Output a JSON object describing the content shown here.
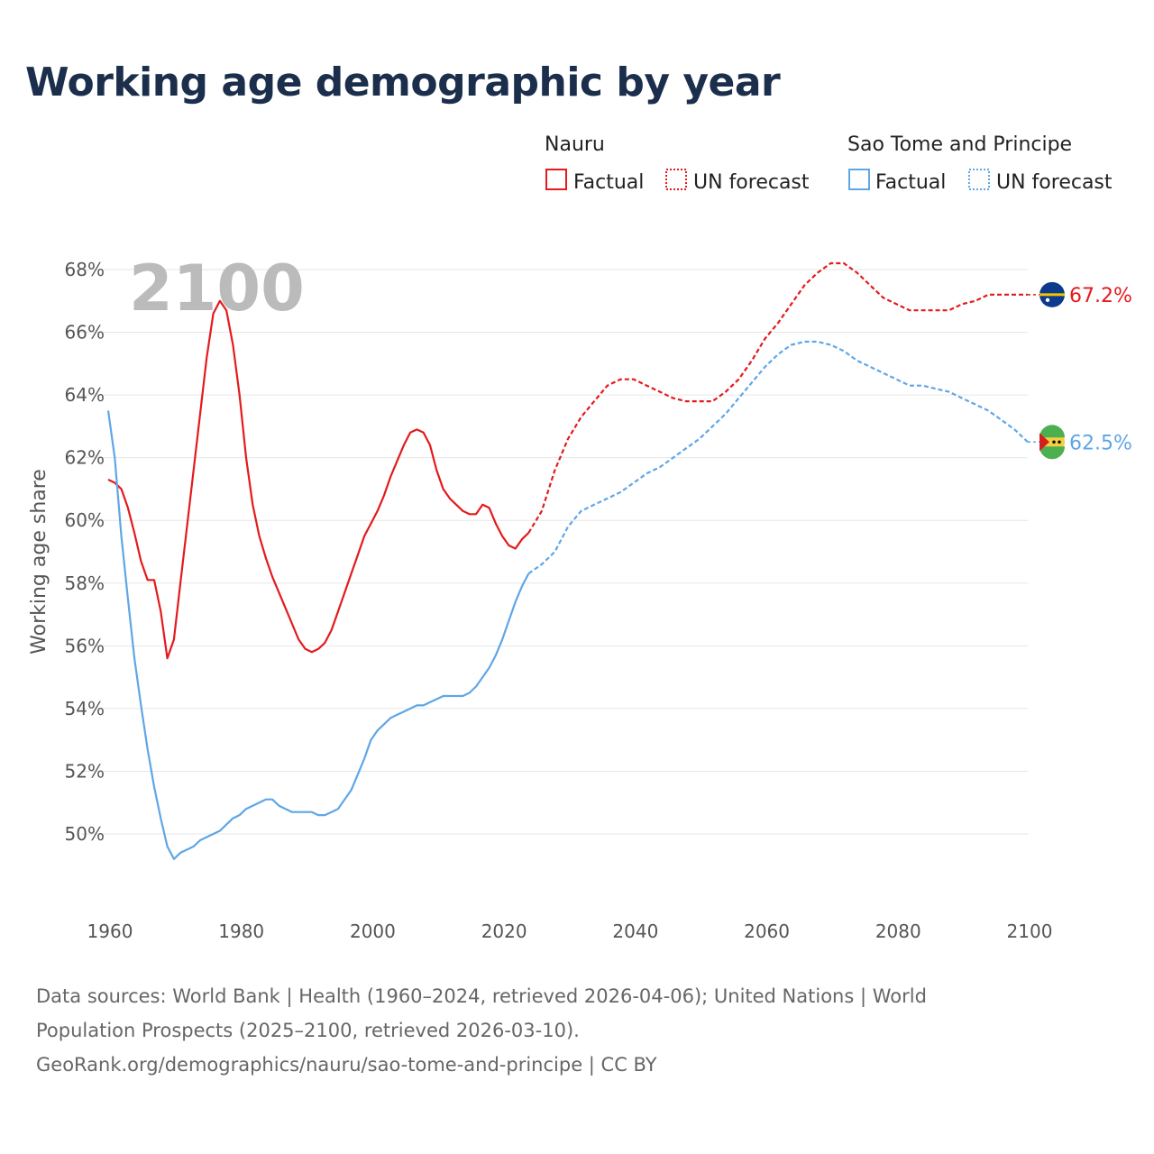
{
  "title": "Working age demographic by year",
  "chart_data": {
    "type": "line",
    "title": "Working age demographic by year",
    "xlabel": "",
    "ylabel": "Working age share",
    "xlim": [
      1960,
      2100
    ],
    "ylim": [
      48,
      69
    ],
    "x_ticks": [
      1960,
      1980,
      2000,
      2020,
      2040,
      2060,
      2080,
      2100
    ],
    "x_tick_labels": [
      "1960",
      "1980",
      "2000",
      "2020",
      "2040",
      "2060",
      "2080",
      "2100"
    ],
    "y_ticks": [
      50,
      52,
      54,
      56,
      58,
      60,
      62,
      64,
      66,
      68
    ],
    "y_tick_labels": [
      "50%",
      "52%",
      "54%",
      "56%",
      "58%",
      "60%",
      "62%",
      "64%",
      "66%",
      "68%"
    ],
    "year_label": "2100",
    "grid": true,
    "legend": {
      "placement": "top-right",
      "groups": [
        {
          "country": "Nauru",
          "factual": "Factual",
          "forecast": "UN forecast",
          "color": "#e41a1c"
        },
        {
          "country": "Sao Tome and Principe",
          "factual": "Factual",
          "forecast": "UN forecast",
          "color": "#5fa6e6"
        }
      ]
    },
    "series": [
      {
        "name": "Nauru",
        "color": "#e41a1c",
        "end_label": "67.2%",
        "factual": {
          "x": [
            1960,
            1961,
            1962,
            1963,
            1964,
            1965,
            1966,
            1967,
            1968,
            1969,
            1970,
            1971,
            1972,
            1973,
            1974,
            1975,
            1976,
            1977,
            1978,
            1979,
            1980,
            1981,
            1982,
            1983,
            1984,
            1985,
            1986,
            1987,
            1988,
            1989,
            1990,
            1991,
            1992,
            1993,
            1994,
            1995,
            1996,
            1997,
            1998,
            1999,
            2000,
            2001,
            2002,
            2003,
            2004,
            2005,
            2006,
            2007,
            2008,
            2009,
            2010,
            2011,
            2012,
            2013,
            2014,
            2015,
            2016,
            2017,
            2018,
            2019,
            2020,
            2021,
            2022,
            2023,
            2024
          ],
          "y": [
            61.3,
            61.2,
            61.0,
            60.4,
            59.6,
            58.7,
            58.1,
            58.1,
            57.1,
            55.6,
            56.2,
            58.0,
            59.8,
            61.6,
            63.4,
            65.2,
            66.6,
            67.0,
            66.7,
            65.6,
            64.0,
            62.0,
            60.5,
            59.5,
            58.8,
            58.2,
            57.7,
            57.2,
            56.7,
            56.2,
            55.9,
            55.8,
            55.9,
            56.1,
            56.5,
            57.1,
            57.7,
            58.3,
            58.9,
            59.5,
            59.9,
            60.3,
            60.8,
            61.4,
            61.9,
            62.4,
            62.8,
            62.9,
            62.8,
            62.4,
            61.6,
            61.0,
            60.7,
            60.5,
            60.3,
            60.2,
            60.2,
            60.5,
            60.4,
            59.9,
            59.5,
            59.2,
            59.1,
            59.4,
            59.6
          ]
        },
        "forecast": {
          "x": [
            2024,
            2026,
            2028,
            2030,
            2032,
            2034,
            2036,
            2038,
            2040,
            2042,
            2044,
            2046,
            2048,
            2050,
            2052,
            2054,
            2056,
            2058,
            2060,
            2062,
            2064,
            2066,
            2068,
            2070,
            2072,
            2074,
            2076,
            2078,
            2080,
            2082,
            2084,
            2086,
            2088,
            2090,
            2092,
            2094,
            2096,
            2098,
            2100
          ],
          "y": [
            59.6,
            60.3,
            61.6,
            62.6,
            63.3,
            63.8,
            64.3,
            64.5,
            64.5,
            64.3,
            64.1,
            63.9,
            63.8,
            63.8,
            63.8,
            64.1,
            64.5,
            65.1,
            65.8,
            66.3,
            66.9,
            67.5,
            67.9,
            68.2,
            68.2,
            67.9,
            67.5,
            67.1,
            66.9,
            66.7,
            66.7,
            66.7,
            66.7,
            66.9,
            67.0,
            67.2,
            67.2,
            67.2,
            67.2
          ]
        }
      },
      {
        "name": "Sao Tome and Principe",
        "color": "#5fa6e6",
        "end_label": "62.5%",
        "factual": {
          "x": [
            1960,
            1961,
            1962,
            1963,
            1964,
            1965,
            1966,
            1967,
            1968,
            1969,
            1970,
            1971,
            1972,
            1973,
            1974,
            1975,
            1976,
            1977,
            1978,
            1979,
            1980,
            1981,
            1982,
            1983,
            1984,
            1985,
            1986,
            1987,
            1988,
            1989,
            1990,
            1991,
            1992,
            1993,
            1994,
            1995,
            1996,
            1997,
            1998,
            1999,
            2000,
            2001,
            2002,
            2003,
            2004,
            2005,
            2006,
            2007,
            2008,
            2009,
            2010,
            2011,
            2012,
            2013,
            2014,
            2015,
            2016,
            2017,
            2018,
            2019,
            2020,
            2021,
            2022,
            2023,
            2024
          ],
          "y": [
            63.5,
            62.0,
            59.5,
            57.5,
            55.6,
            54.1,
            52.7,
            51.5,
            50.5,
            49.6,
            49.2,
            49.4,
            49.5,
            49.6,
            49.8,
            49.9,
            50.0,
            50.1,
            50.3,
            50.5,
            50.6,
            50.8,
            50.9,
            51.0,
            51.1,
            51.1,
            50.9,
            50.8,
            50.7,
            50.7,
            50.7,
            50.7,
            50.6,
            50.6,
            50.7,
            50.8,
            51.1,
            51.4,
            51.9,
            52.4,
            53.0,
            53.3,
            53.5,
            53.7,
            53.8,
            53.9,
            54.0,
            54.1,
            54.1,
            54.2,
            54.3,
            54.4,
            54.4,
            54.4,
            54.4,
            54.5,
            54.7,
            55.0,
            55.3,
            55.7,
            56.2,
            56.8,
            57.4,
            57.9,
            58.3
          ]
        },
        "forecast": {
          "x": [
            2024,
            2026,
            2028,
            2030,
            2032,
            2034,
            2036,
            2038,
            2040,
            2042,
            2044,
            2046,
            2048,
            2050,
            2052,
            2054,
            2056,
            2058,
            2060,
            2062,
            2064,
            2066,
            2068,
            2070,
            2072,
            2074,
            2076,
            2078,
            2080,
            2082,
            2084,
            2086,
            2088,
            2090,
            2092,
            2094,
            2096,
            2098,
            2100
          ],
          "y": [
            58.3,
            58.6,
            59.0,
            59.8,
            60.3,
            60.5,
            60.7,
            60.9,
            61.2,
            61.5,
            61.7,
            62.0,
            62.3,
            62.6,
            63.0,
            63.4,
            63.9,
            64.4,
            64.9,
            65.3,
            65.6,
            65.7,
            65.7,
            65.6,
            65.4,
            65.1,
            64.9,
            64.7,
            64.5,
            64.3,
            64.3,
            64.2,
            64.1,
            63.9,
            63.7,
            63.5,
            63.2,
            62.9,
            62.5
          ]
        }
      }
    ]
  },
  "footer": {
    "line1": "Data sources: World Bank | Health (1960–2024, retrieved 2026-04-06); United Nations | World",
    "line2": "Population Prospects (2025–2100, retrieved 2026-03-10).",
    "line3": "GeoRank.org/demographics/nauru/sao-tome-and-principe | CC BY"
  }
}
